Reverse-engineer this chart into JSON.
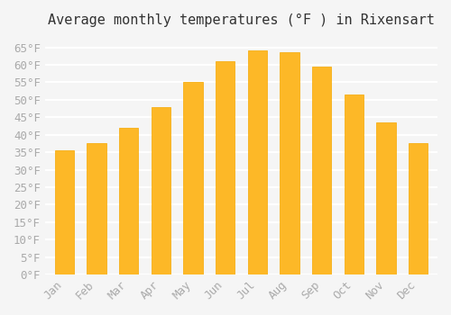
{
  "title": "Average monthly temperatures (°F ) in Rixensart",
  "months": [
    "Jan",
    "Feb",
    "Mar",
    "Apr",
    "May",
    "Jun",
    "Jul",
    "Aug",
    "Sep",
    "Oct",
    "Nov",
    "Dec"
  ],
  "values": [
    35.5,
    37.5,
    42.0,
    48.0,
    55.0,
    61.0,
    64.0,
    63.5,
    59.5,
    51.5,
    43.5,
    37.5
  ],
  "bar_color_face": "#FDB827",
  "bar_color_edge": "#F5A800",
  "ylim": [
    0,
    68
  ],
  "yticks": [
    0,
    5,
    10,
    15,
    20,
    25,
    30,
    35,
    40,
    45,
    50,
    55,
    60,
    65
  ],
  "ytick_labels": [
    "0°F",
    "5°F",
    "10°F",
    "15°F",
    "20°F",
    "25°F",
    "30°F",
    "35°F",
    "40°F",
    "45°F",
    "50°F",
    "55°F",
    "60°F",
    "65°F"
  ],
  "background_color": "#f5f5f5",
  "grid_color": "#ffffff",
  "title_fontsize": 11,
  "tick_fontsize": 9,
  "tick_font_color": "#aaaaaa",
  "font_family": "monospace"
}
